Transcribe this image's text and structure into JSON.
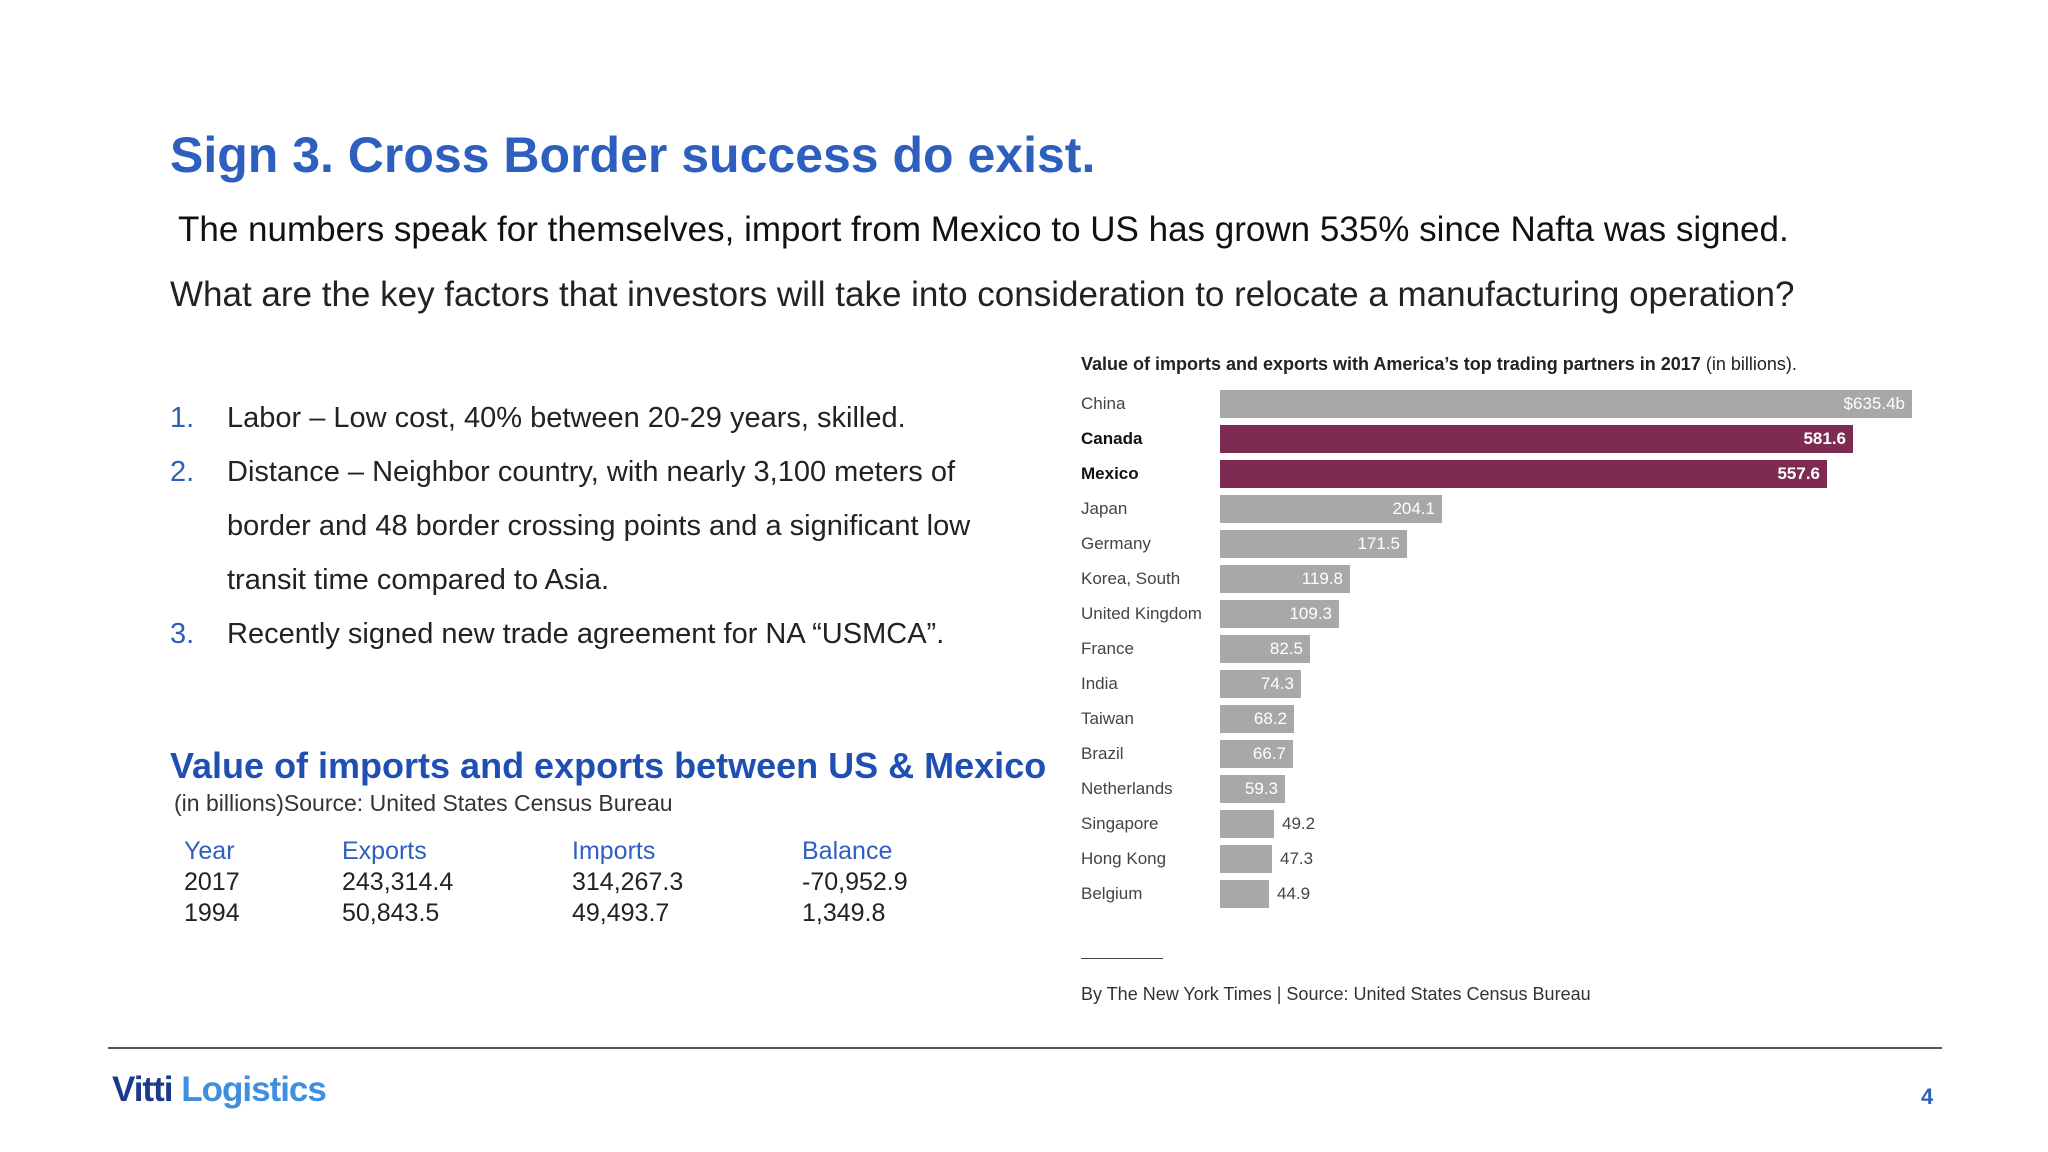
{
  "slide": {
    "title": "Sign 3. Cross Border success do exist.",
    "subtitle": "The numbers speak for themselves, import from Mexico to US has grown 535% since Nafta was signed.",
    "question": "What are the key factors that investors will take into consideration to relocate a manufacturing operation?",
    "page_number": "4"
  },
  "factors": [
    {
      "num": "1.",
      "text": "Labor – Low cost, 40% between 20-29 years, skilled."
    },
    {
      "num": "2.",
      "text": "Distance – Neighbor country, with nearly 3,100 meters of border and 48 border crossing points and a significant low transit time compared to Asia."
    },
    {
      "num": "3.",
      "text": "Recently signed new trade agreement for NA “USMCA”."
    }
  ],
  "trade_section": {
    "title": "Value of imports and exports between US & Mexico",
    "note": "(in billions)Source: United States Census Bureau",
    "headers": [
      "Year",
      "Exports",
      "Imports",
      "Balance"
    ],
    "rows": [
      [
        "2017",
        "243,314.4",
        "314,267.3",
        "-70,952.9"
      ],
      [
        "1994",
        "50,843.5",
        "49,493.7",
        "1,349.8"
      ]
    ]
  },
  "chart_data": {
    "type": "bar",
    "orientation": "horizontal",
    "title": "Value of imports and exports with America’s top trading partners in 2017",
    "title_suffix": "(in billions).",
    "categories": [
      "China",
      "Canada",
      "Mexico",
      "Japan",
      "Germany",
      "Korea, South",
      "United Kingdom",
      "France",
      "India",
      "Taiwan",
      "Brazil",
      "Netherlands",
      "Singapore",
      "Hong Kong",
      "Belgium"
    ],
    "values": [
      635.4,
      581.6,
      557.6,
      204.1,
      171.5,
      119.8,
      109.3,
      82.5,
      74.3,
      68.2,
      66.7,
      59.3,
      49.2,
      47.3,
      44.9
    ],
    "value_labels": [
      "$635.4b",
      "581.6",
      "557.6",
      "204.1",
      "171.5",
      "119.8",
      "109.3",
      "82.5",
      "74.3",
      "68.2",
      "66.7",
      "59.3",
      "49.2",
      "47.3",
      "44.9"
    ],
    "highlighted": [
      "Canada",
      "Mexico"
    ],
    "colors": {
      "default": "#a9a7a8",
      "highlight": "#7e2b51"
    },
    "xlim": [
      0,
      635.4
    ],
    "credit": "By The New York Times | Source: United States Census Bureau"
  },
  "footer": {
    "logo_part1": "Vitti",
    "logo_part2": "Logistics"
  }
}
